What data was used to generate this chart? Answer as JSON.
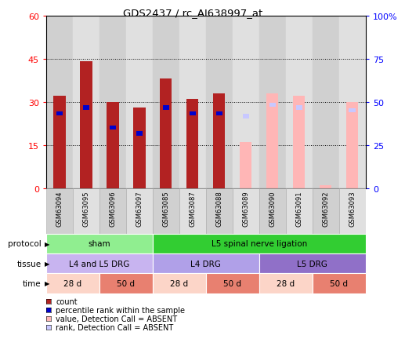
{
  "title": "GDS2437 / rc_AI638997_at",
  "samples": [
    "GSM63094",
    "GSM63095",
    "GSM63096",
    "GSM63097",
    "GSM63085",
    "GSM63087",
    "GSM63088",
    "GSM63089",
    "GSM63090",
    "GSM63091",
    "GSM63092",
    "GSM63093"
  ],
  "count_values": [
    32,
    44,
    30,
    28,
    38,
    31,
    33,
    0,
    0,
    0,
    0,
    0
  ],
  "percentile_values": [
    26,
    28,
    21,
    19,
    28,
    26,
    26,
    0,
    0,
    0,
    0,
    0
  ],
  "absent_value_values": [
    0,
    0,
    0,
    0,
    0,
    0,
    0,
    16,
    33,
    32,
    1,
    30
  ],
  "absent_rank_values": [
    0,
    0,
    0,
    0,
    0,
    0,
    0,
    25,
    29,
    28,
    0,
    27
  ],
  "left_ylim": [
    0,
    60
  ],
  "right_ylim": [
    0,
    100
  ],
  "left_yticks": [
    0,
    15,
    30,
    45,
    60
  ],
  "left_yticklabels": [
    "0",
    "15",
    "30",
    "45",
    "60"
  ],
  "right_yticks": [
    0,
    25,
    50,
    75,
    100
  ],
  "right_yticklabels": [
    "0",
    "25",
    "50",
    "75",
    "100%"
  ],
  "grid_values": [
    15,
    30,
    45
  ],
  "color_count": "#b22222",
  "color_percentile": "#0000cd",
  "color_absent_value": "#ffb6b6",
  "color_absent_rank": "#c8c8ff",
  "protocol_groups": [
    {
      "label": "sham",
      "start": 0,
      "end": 4,
      "color": "#90ee90"
    },
    {
      "label": "L5 spinal nerve ligation",
      "start": 4,
      "end": 12,
      "color": "#32cd32"
    }
  ],
  "tissue_groups": [
    {
      "label": "L4 and L5 DRG",
      "start": 0,
      "end": 4,
      "color": "#c8b4f0"
    },
    {
      "label": "L4 DRG",
      "start": 4,
      "end": 8,
      "color": "#b0a0e8"
    },
    {
      "label": "L5 DRG",
      "start": 8,
      "end": 12,
      "color": "#9070c8"
    }
  ],
  "time_groups": [
    {
      "label": "28 d",
      "start": 0,
      "end": 2,
      "color": "#fcd5c8"
    },
    {
      "label": "50 d",
      "start": 2,
      "end": 4,
      "color": "#e88070"
    },
    {
      "label": "28 d",
      "start": 4,
      "end": 6,
      "color": "#fcd5c8"
    },
    {
      "label": "50 d",
      "start": 6,
      "end": 8,
      "color": "#e88070"
    },
    {
      "label": "28 d",
      "start": 8,
      "end": 10,
      "color": "#fcd5c8"
    },
    {
      "label": "50 d",
      "start": 10,
      "end": 12,
      "color": "#e88070"
    }
  ],
  "legend_items": [
    {
      "label": "count",
      "color": "#b22222"
    },
    {
      "label": "percentile rank within the sample",
      "color": "#0000cd"
    },
    {
      "label": "value, Detection Call = ABSENT",
      "color": "#ffb6b6"
    },
    {
      "label": "rank, Detection Call = ABSENT",
      "color": "#c8c8ff"
    }
  ],
  "bar_width": 0.45,
  "blue_bar_width": 0.25,
  "cell_colors": [
    "#d0d0d0",
    "#e0e0e0"
  ]
}
